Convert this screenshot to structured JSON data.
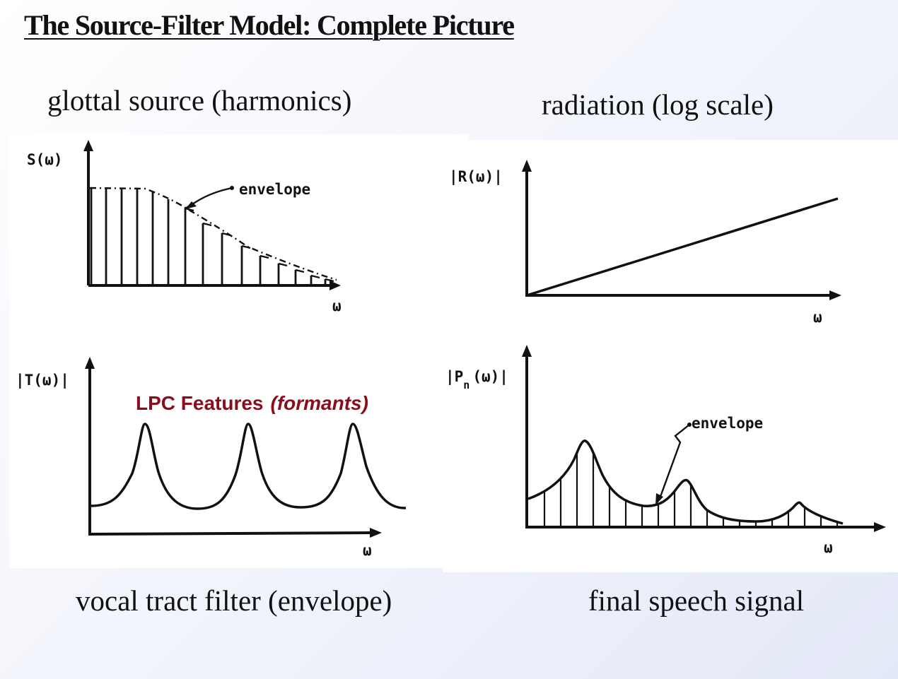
{
  "slide": {
    "title": "The Source-Filter Model: Complete Picture"
  },
  "captions": {
    "glottal": "glottal source (harmonics)",
    "radiation": "radiation (log scale)",
    "vocal": "vocal tract filter (envelope)",
    "final": "final speech signal"
  },
  "plots": {
    "glottal": {
      "ylabel": "S(ω)",
      "xlabel": "ω",
      "annotation": "envelope"
    },
    "radiation": {
      "ylabel": "|R(ω)|",
      "xlabel": "ω"
    },
    "vocal": {
      "ylabel": "|T(ω)|",
      "xlabel": "ω"
    },
    "final": {
      "ylabel_pre": "|P",
      "ylabel_sub": "n",
      "ylabel_post": "(ω)|",
      "xlabel": "ω",
      "annotation": "envelope"
    }
  },
  "overlay": {
    "lpc_label": "LPC Features",
    "lpc_italic": "(formants)"
  }
}
